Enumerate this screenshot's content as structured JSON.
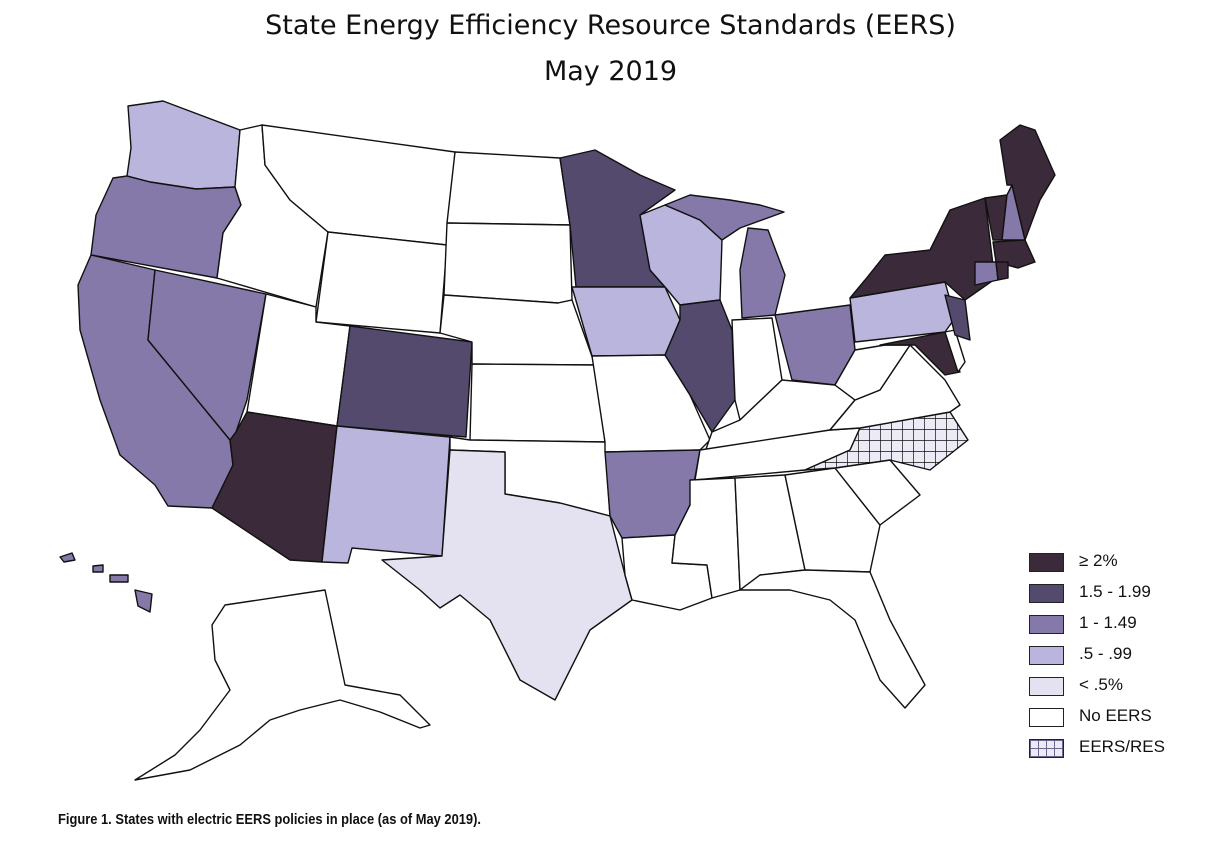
{
  "title": "State Energy Efficiency Resource Standards (EERS)",
  "subtitle": "May 2019",
  "caption": "Figure 1. States with electric EERS policies in place (as of May 2019).",
  "colors": {
    "ge2": "#3a2a3a",
    "c150": "#544a6e",
    "c100": "#8479a8",
    "c050": "#b9b5dc",
    "clt05": "#e4e2f1",
    "none": "#ffffff",
    "hatch": "#eceaf5"
  },
  "legend": [
    {
      "key": "ge2",
      "label": "≥ 2%"
    },
    {
      "key": "c150",
      "label": "1.5 - 1.99"
    },
    {
      "key": "c100",
      "label": "1 - 1.49"
    },
    {
      "key": "c050",
      "label": ".5 - .99"
    },
    {
      "key": "clt05",
      "label": "< .5%"
    },
    {
      "key": "none",
      "label": "No EERS"
    },
    {
      "key": "hatch",
      "label": "EERS/RES"
    }
  ]
}
